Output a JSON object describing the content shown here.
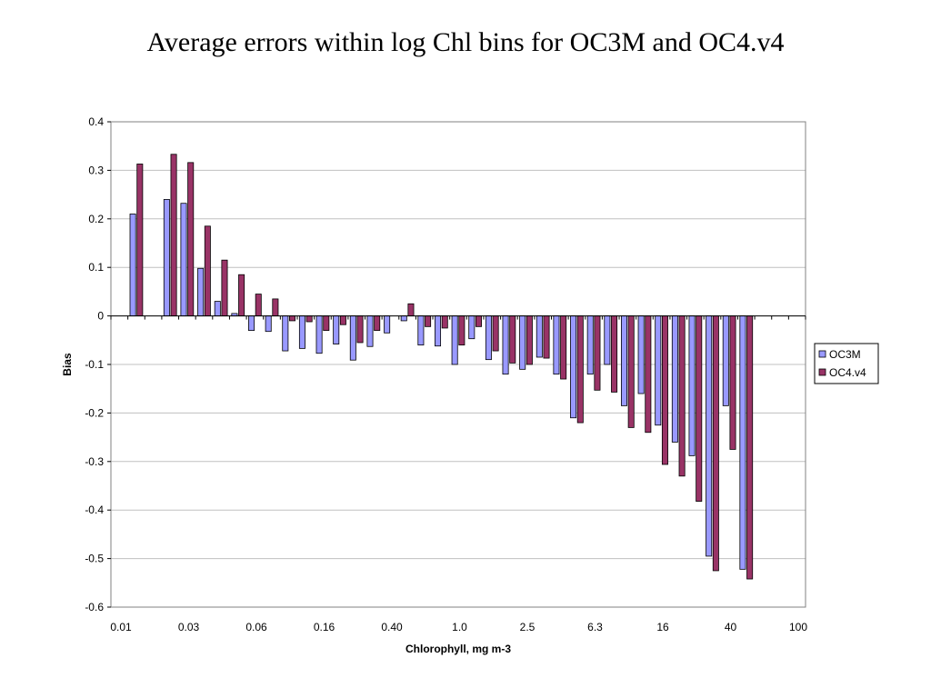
{
  "chart_data": {
    "type": "bar",
    "title": "Average errors within log Chl bins for OC3M and OC4.v4",
    "xlabel": "Chlorophyll, mg m-3",
    "ylabel": "Bias",
    "ylim": [
      -0.6,
      0.4
    ],
    "yticks": [
      0.4,
      0.3,
      0.2,
      0.1,
      0,
      -0.1,
      -0.2,
      -0.3,
      -0.4,
      -0.5,
      -0.6
    ],
    "xtick_labels": [
      "0.01",
      "0.03",
      "0.06",
      "0.16",
      "0.40",
      "1.0",
      "2.5",
      "6.3",
      "16",
      "40",
      "100"
    ],
    "grid": true,
    "legend_position": "right",
    "series": [
      {
        "name": "OC3M",
        "color": "#9999ff",
        "values": [
          0.21,
          null,
          0.24,
          0.232,
          0.098,
          0.03,
          0.005,
          -0.03,
          -0.032,
          -0.072,
          -0.067,
          -0.077,
          -0.058,
          -0.091,
          -0.063,
          -0.035,
          -0.01,
          -0.06,
          -0.062,
          -0.1,
          -0.047,
          -0.09,
          -0.12,
          -0.11,
          -0.085,
          -0.12,
          -0.21,
          -0.12,
          -0.1,
          -0.185,
          -0.16,
          -0.225,
          -0.26,
          -0.288,
          -0.495,
          -0.185,
          -0.522
        ]
      },
      {
        "name": "OC4.v4",
        "color": "#993366",
        "values": [
          0.313,
          null,
          0.333,
          0.316,
          0.185,
          0.115,
          0.085,
          0.045,
          0.035,
          -0.01,
          -0.012,
          -0.03,
          -0.018,
          -0.055,
          -0.03,
          null,
          0.025,
          -0.022,
          -0.025,
          -0.06,
          -0.022,
          -0.072,
          -0.097,
          -0.1,
          -0.087,
          -0.13,
          -0.22,
          -0.153,
          -0.157,
          -0.23,
          -0.24,
          -0.306,
          -0.33,
          -0.382,
          -0.525,
          -0.275,
          -0.542
        ]
      }
    ]
  }
}
